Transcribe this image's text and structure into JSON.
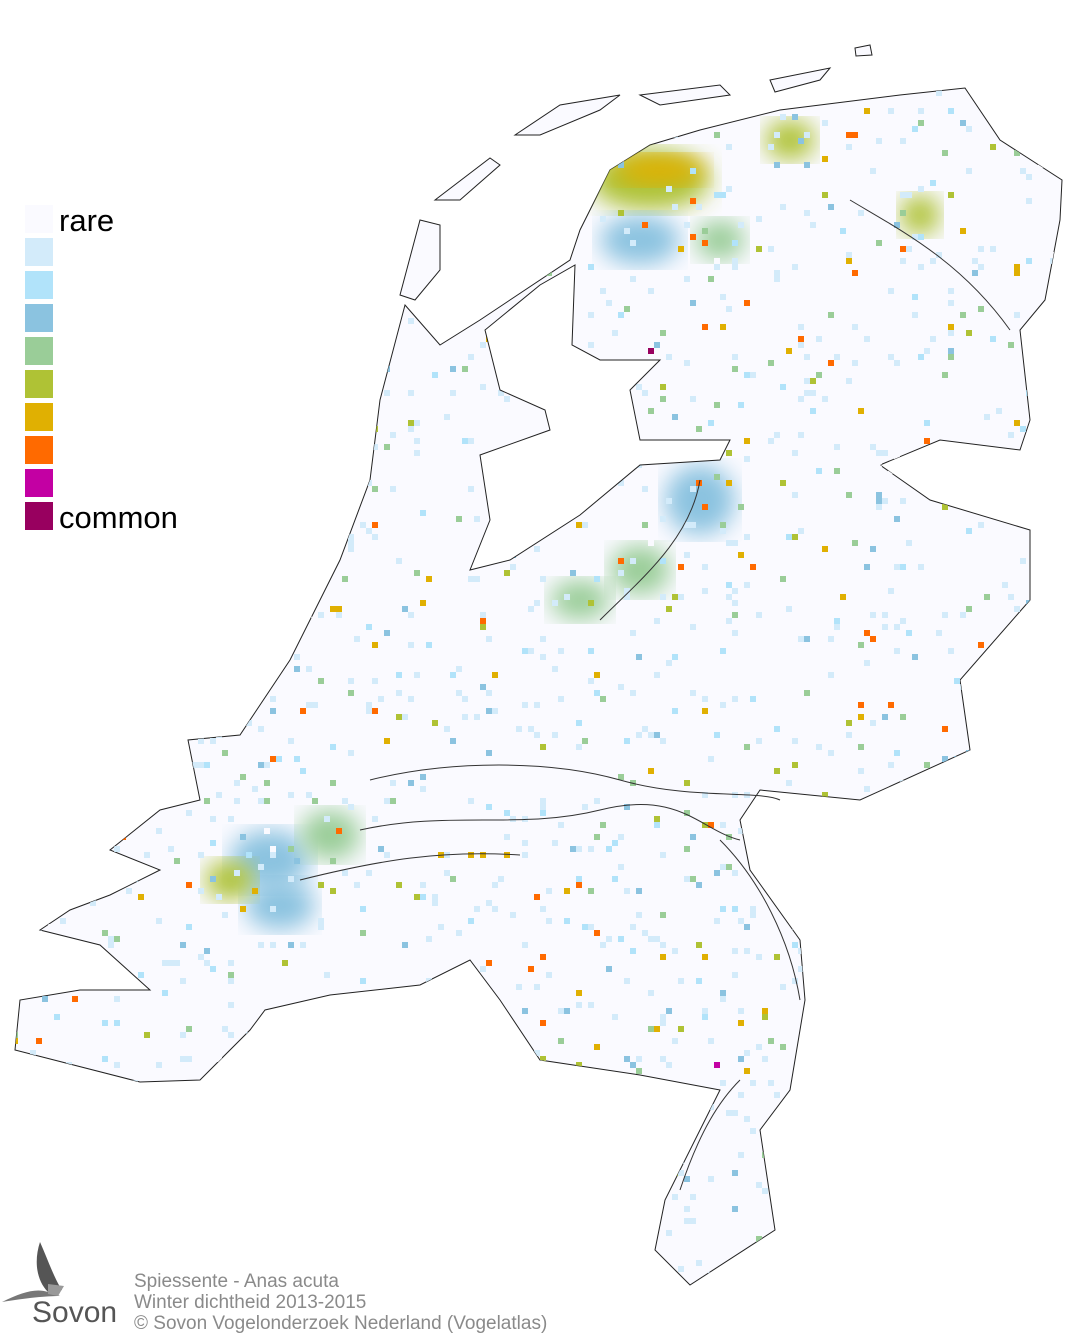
{
  "legend": {
    "top_label": "rare",
    "bottom_label": "common",
    "colors": [
      "#fafaff",
      "#d3ebfa",
      "#b1e3fa",
      "#8bc3e0",
      "#9acd98",
      "#afc235",
      "#e0b002",
      "#ff6a00",
      "#c300a3",
      "#98005f"
    ]
  },
  "footer": {
    "line1": "Spiessente - Anas acuta",
    "line2": "Winter dichtheid 2013-2015",
    "line3": "© Sovon Vogelonderzoek Nederland (Vogelatlas)"
  },
  "logo": {
    "text": "Sovon"
  }
}
